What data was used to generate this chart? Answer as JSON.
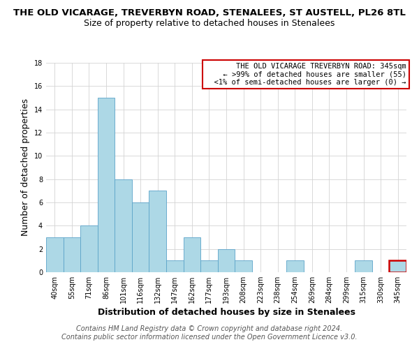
{
  "title_line1": "THE OLD VICARAGE, TREVERBYN ROAD, STENALEES, ST AUSTELL, PL26 8TL",
  "title_line2": "Size of property relative to detached houses in Stenalees",
  "xlabel": "Distribution of detached houses by size in Stenalees",
  "ylabel": "Number of detached properties",
  "bin_labels": [
    "40sqm",
    "55sqm",
    "71sqm",
    "86sqm",
    "101sqm",
    "116sqm",
    "132sqm",
    "147sqm",
    "162sqm",
    "177sqm",
    "193sqm",
    "208sqm",
    "223sqm",
    "238sqm",
    "254sqm",
    "269sqm",
    "284sqm",
    "299sqm",
    "315sqm",
    "330sqm",
    "345sqm"
  ],
  "bar_heights": [
    3,
    3,
    4,
    15,
    8,
    6,
    7,
    1,
    3,
    1,
    2,
    1,
    0,
    0,
    1,
    0,
    0,
    0,
    1,
    0,
    1
  ],
  "bar_color": "#add8e6",
  "bar_edge_color": "#5ba3c9",
  "highlight_bar_index": 20,
  "highlight_bar_edge_color": "#cc0000",
  "ylim": [
    0,
    18
  ],
  "yticks": [
    0,
    2,
    4,
    6,
    8,
    10,
    12,
    14,
    16,
    18
  ],
  "legend_title": "THE OLD VICARAGE TREVERBYN ROAD: 345sqm",
  "legend_line1": "← >99% of detached houses are smaller (55)",
  "legend_line2": "<1% of semi-detached houses are larger (0) →",
  "legend_box_edge_color": "#cc0000",
  "footer_line1": "Contains HM Land Registry data © Crown copyright and database right 2024.",
  "footer_line2": "Contains public sector information licensed under the Open Government Licence v3.0.",
  "title_fontsize": 9.5,
  "subtitle_fontsize": 9,
  "axis_label_fontsize": 9,
  "tick_fontsize": 7,
  "legend_fontsize": 7.5,
  "footer_fontsize": 7
}
